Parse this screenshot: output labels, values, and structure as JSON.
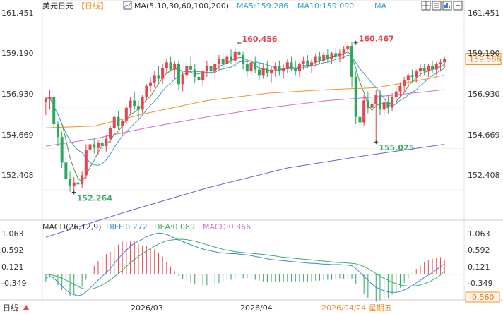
{
  "header": {
    "symbol": "美元日元",
    "period": "【日线】",
    "ma_label": "MA(5,10,30,60,100,200)",
    "ma5_label": "MA5:159.286",
    "ma10_label": "MA10:159.090",
    "ma_extra": "MA"
  },
  "macd_header": {
    "label": "MACD(26,12,9)",
    "diff": "DIFF:0.272",
    "dea": "DEA:0.089",
    "macd": "MACD:0.366"
  },
  "footer": {
    "period": "日线",
    "date1": "2026/03",
    "date2": "2026/04",
    "cursor_date": "2026/04/24 星期五"
  },
  "price_axis": {
    "ticks": [
      "161.451",
      "159.190",
      "156.930",
      "154.669",
      "152.408"
    ],
    "current_price": "159.586"
  },
  "macd_axis": {
    "ticks": [
      "1.063",
      "0.592",
      "0.121",
      "-0.349"
    ],
    "current_min": "-0.560"
  },
  "colors": {
    "up": "#e8434e",
    "down": "#2ea75e",
    "ma5": "#4a9a4a",
    "ma10": "#39a0c9",
    "ma30": "#f0922b",
    "ma60": "#d36fc6",
    "ma100": "#6a62d8",
    "diff": "#3a8ad6",
    "dea": "#3fae69"
  },
  "toolbar_icons": [
    "grid-icon",
    "list-icon",
    "chart-icon",
    "zoom-out-icon"
  ],
  "chart_data": {
    "type": "candlestick",
    "title": "美元日元 日线",
    "ylim": [
      151.2,
      162.2
    ],
    "annotations": [
      {
        "label": "160.456",
        "value": 160.456,
        "bar": 48
      },
      {
        "label": "160.467",
        "value": 160.467,
        "bar": 77
      },
      {
        "label": "155.025",
        "value": 155.025,
        "bar": 82
      },
      {
        "label": "152.264",
        "value": 152.264,
        "bar": 7
      }
    ],
    "candles": [
      [
        157.2,
        157.5,
        156.5,
        157.4
      ],
      [
        157.4,
        157.9,
        156.8,
        157.5
      ],
      [
        157.5,
        157.6,
        155.8,
        156.0
      ],
      [
        156.0,
        156.2,
        154.8,
        155.3
      ],
      [
        155.3,
        155.6,
        153.6,
        153.9
      ],
      [
        153.9,
        154.2,
        152.8,
        153.0
      ],
      [
        153.0,
        153.4,
        152.3,
        152.6
      ],
      [
        152.6,
        153.1,
        152.2,
        152.8
      ],
      [
        152.8,
        153.3,
        152.4,
        152.7
      ],
      [
        152.7,
        153.4,
        152.5,
        153.2
      ],
      [
        153.2,
        154.9,
        153.0,
        154.6
      ],
      [
        154.6,
        155.1,
        154.2,
        154.9
      ],
      [
        154.9,
        155.2,
        154.4,
        154.7
      ],
      [
        154.7,
        155.1,
        154.3,
        155.0
      ],
      [
        155.0,
        155.4,
        154.6,
        154.8
      ],
      [
        154.8,
        155.4,
        154.5,
        155.2
      ],
      [
        155.2,
        155.9,
        155.0,
        155.8
      ],
      [
        155.8,
        156.5,
        155.6,
        156.4
      ],
      [
        156.4,
        156.7,
        155.7,
        155.9
      ],
      [
        155.9,
        156.3,
        155.4,
        156.2
      ],
      [
        156.2,
        157.0,
        156.0,
        156.9
      ],
      [
        156.9,
        157.5,
        156.6,
        157.3
      ],
      [
        157.3,
        157.8,
        156.8,
        157.0
      ],
      [
        157.0,
        157.3,
        156.3,
        156.8
      ],
      [
        156.8,
        157.6,
        156.6,
        157.5
      ],
      [
        157.5,
        158.2,
        157.3,
        158.1
      ],
      [
        158.1,
        158.6,
        157.8,
        158.3
      ],
      [
        158.3,
        158.9,
        158.0,
        158.7
      ],
      [
        158.7,
        159.2,
        158.3,
        158.5
      ],
      [
        158.5,
        159.3,
        158.2,
        159.1
      ],
      [
        159.1,
        159.6,
        158.8,
        159.4
      ],
      [
        159.4,
        159.7,
        158.9,
        159.0
      ],
      [
        159.0,
        159.5,
        158.5,
        159.3
      ],
      [
        159.3,
        159.5,
        157.9,
        158.2
      ],
      [
        158.2,
        158.9,
        157.8,
        158.7
      ],
      [
        158.7,
        159.4,
        158.4,
        159.2
      ],
      [
        159.2,
        159.7,
        158.8,
        159.0
      ],
      [
        159.0,
        159.3,
        158.3,
        158.6
      ],
      [
        158.6,
        158.9,
        158.0,
        158.4
      ],
      [
        158.4,
        159.0,
        158.1,
        158.9
      ],
      [
        158.9,
        159.5,
        158.6,
        159.2
      ],
      [
        159.2,
        159.6,
        158.7,
        158.9
      ],
      [
        158.9,
        159.4,
        158.5,
        159.3
      ],
      [
        159.3,
        159.8,
        159.0,
        159.6
      ],
      [
        159.6,
        159.9,
        159.1,
        159.3
      ],
      [
        159.3,
        159.8,
        158.9,
        159.7
      ],
      [
        159.7,
        160.1,
        159.3,
        159.5
      ],
      [
        159.5,
        160.2,
        159.2,
        160.0
      ],
      [
        160.0,
        160.5,
        159.6,
        159.8
      ],
      [
        159.8,
        160.0,
        159.0,
        159.3
      ],
      [
        159.3,
        159.6,
        158.6,
        158.9
      ],
      [
        158.9,
        159.5,
        158.7,
        159.4
      ],
      [
        159.4,
        159.7,
        158.8,
        159.0
      ],
      [
        159.0,
        159.4,
        158.4,
        158.7
      ],
      [
        158.7,
        159.3,
        158.5,
        159.1
      ],
      [
        159.1,
        159.5,
        158.6,
        158.8
      ],
      [
        158.8,
        159.2,
        158.3,
        159.0
      ],
      [
        159.0,
        159.4,
        158.6,
        159.2
      ],
      [
        159.2,
        159.5,
        158.7,
        158.9
      ],
      [
        158.9,
        159.3,
        158.5,
        159.1
      ],
      [
        159.1,
        159.6,
        158.8,
        159.4
      ],
      [
        159.4,
        159.7,
        158.9,
        159.1
      ],
      [
        159.1,
        159.5,
        158.7,
        158.9
      ],
      [
        158.9,
        159.4,
        158.6,
        159.3
      ],
      [
        159.3,
        159.7,
        159.0,
        159.5
      ],
      [
        159.5,
        159.8,
        159.1,
        159.2
      ],
      [
        159.2,
        159.6,
        158.8,
        159.4
      ],
      [
        159.4,
        159.9,
        159.2,
        159.7
      ],
      [
        159.7,
        160.0,
        159.3,
        159.5
      ],
      [
        159.5,
        160.0,
        159.3,
        159.8
      ],
      [
        159.8,
        160.1,
        159.4,
        159.6
      ],
      [
        159.6,
        160.0,
        159.3,
        159.9
      ],
      [
        159.9,
        160.2,
        159.5,
        159.7
      ],
      [
        159.7,
        160.1,
        159.4,
        159.9
      ],
      [
        159.9,
        160.3,
        159.6,
        160.1
      ],
      [
        160.1,
        160.5,
        159.8,
        160.3
      ],
      [
        160.3,
        160.5,
        158.0,
        158.6
      ],
      [
        158.6,
        158.9,
        156.0,
        156.4
      ],
      [
        156.4,
        157.2,
        155.6,
        156.1
      ],
      [
        156.1,
        157.6,
        155.9,
        157.3
      ],
      [
        157.3,
        157.8,
        156.6,
        156.9
      ],
      [
        156.9,
        157.5,
        156.4,
        157.1
      ],
      [
        157.1,
        157.9,
        155.0,
        157.6
      ],
      [
        157.6,
        157.9,
        156.5,
        156.8
      ],
      [
        156.8,
        157.4,
        156.4,
        157.2
      ],
      [
        157.2,
        157.6,
        156.6,
        156.9
      ],
      [
        156.9,
        157.7,
        156.7,
        157.5
      ],
      [
        157.5,
        158.0,
        157.1,
        157.8
      ],
      [
        157.8,
        158.3,
        157.5,
        158.1
      ],
      [
        158.1,
        158.6,
        157.8,
        158.4
      ],
      [
        158.4,
        158.8,
        158.0,
        158.7
      ],
      [
        158.7,
        159.0,
        158.3,
        158.6
      ],
      [
        158.6,
        159.0,
        158.3,
        158.9
      ],
      [
        158.9,
        159.3,
        158.6,
        159.1
      ],
      [
        159.1,
        159.3,
        158.7,
        158.9
      ],
      [
        158.9,
        159.3,
        158.6,
        159.2
      ],
      [
        159.2,
        159.5,
        158.8,
        159.0
      ],
      [
        159.0,
        159.4,
        158.7,
        159.3
      ],
      [
        159.3,
        159.6,
        158.9,
        159.4
      ],
      [
        159.4,
        159.7,
        159.1,
        159.6
      ]
    ],
    "ma_series": [
      {
        "name": "MA30",
        "points": [
          [
            0,
            155.8
          ],
          [
            12,
            155.9
          ],
          [
            25,
            156.6
          ],
          [
            40,
            157.3
          ],
          [
            55,
            157.7
          ],
          [
            70,
            157.9
          ],
          [
            82,
            158.0
          ],
          [
            95,
            158.5
          ],
          [
            99,
            158.7
          ]
        ]
      },
      {
        "name": "MA60",
        "points": [
          [
            0,
            154.8
          ],
          [
            12,
            155.2
          ],
          [
            25,
            155.8
          ],
          [
            40,
            156.4
          ],
          [
            55,
            156.9
          ],
          [
            70,
            157.3
          ],
          [
            82,
            157.5
          ],
          [
            95,
            157.8
          ],
          [
            99,
            157.9
          ]
        ]
      },
      {
        "name": "MA100",
        "points": [
          [
            0,
            149.8
          ],
          [
            20,
            151.2
          ],
          [
            40,
            152.5
          ],
          [
            60,
            153.6
          ],
          [
            80,
            154.3
          ],
          [
            99,
            154.9
          ]
        ]
      }
    ],
    "macd_ylim": [
      -0.6,
      1.1
    ],
    "diff": [
      -0.1,
      -0.05,
      -0.1,
      -0.2,
      -0.3,
      -0.4,
      -0.48,
      -0.52,
      -0.55,
      -0.52,
      -0.45,
      -0.35,
      -0.25,
      -0.15,
      -0.05,
      0.05,
      0.15,
      0.28,
      0.4,
      0.52,
      0.62,
      0.72,
      0.8,
      0.85,
      0.9,
      0.96,
      1.0,
      1.04,
      1.06,
      1.05,
      1.02,
      0.98,
      0.93,
      0.88,
      0.84,
      0.8,
      0.76,
      0.72,
      0.68,
      0.65,
      0.62,
      0.6,
      0.58,
      0.56,
      0.55,
      0.54,
      0.53,
      0.53,
      0.52,
      0.51,
      0.5,
      0.48,
      0.46,
      0.44,
      0.42,
      0.4,
      0.38,
      0.37,
      0.36,
      0.35,
      0.34,
      0.33,
      0.32,
      0.31,
      0.3,
      0.29,
      0.28,
      0.28,
      0.27,
      0.26,
      0.26,
      0.25,
      0.25,
      0.25,
      0.24,
      0.24,
      0.22,
      0.15,
      0.05,
      -0.05,
      -0.15,
      -0.25,
      -0.33,
      -0.38,
      -0.42,
      -0.45,
      -0.46,
      -0.46,
      -0.44,
      -0.4,
      -0.35,
      -0.29,
      -0.22,
      -0.15,
      -0.08,
      -0.02,
      0.05,
      0.12,
      0.2,
      0.27
    ],
    "dea": [
      0.0,
      -0.01,
      -0.03,
      -0.06,
      -0.1,
      -0.15,
      -0.2,
      -0.26,
      -0.31,
      -0.36,
      -0.38,
      -0.38,
      -0.36,
      -0.32,
      -0.27,
      -0.21,
      -0.14,
      -0.06,
      0.02,
      0.1,
      0.2,
      0.3,
      0.38,
      0.46,
      0.53,
      0.6,
      0.66,
      0.72,
      0.78,
      0.82,
      0.86,
      0.88,
      0.89,
      0.9,
      0.9,
      0.89,
      0.87,
      0.85,
      0.82,
      0.79,
      0.76,
      0.73,
      0.7,
      0.67,
      0.64,
      0.62,
      0.6,
      0.58,
      0.57,
      0.56,
      0.55,
      0.54,
      0.53,
      0.52,
      0.51,
      0.5,
      0.48,
      0.47,
      0.45,
      0.44,
      0.43,
      0.42,
      0.41,
      0.4,
      0.39,
      0.38,
      0.37,
      0.36,
      0.35,
      0.34,
      0.33,
      0.32,
      0.31,
      0.3,
      0.3,
      0.29,
      0.28,
      0.27,
      0.24,
      0.2,
      0.15,
      0.08,
      0.02,
      -0.05,
      -0.1,
      -0.15,
      -0.2,
      -0.24,
      -0.27,
      -0.29,
      -0.3,
      -0.3,
      -0.29,
      -0.27,
      -0.24,
      -0.2,
      -0.15,
      -0.09,
      -0.02,
      0.09
    ]
  }
}
